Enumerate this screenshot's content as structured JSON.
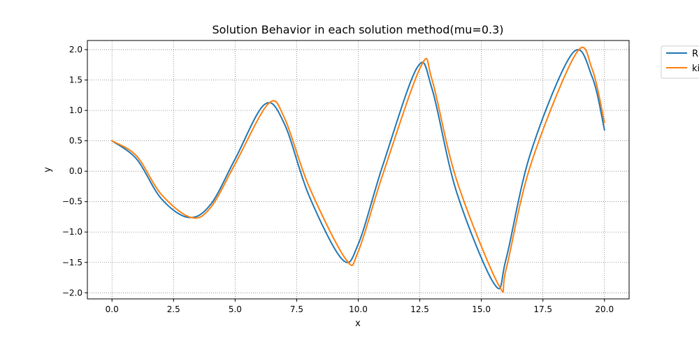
{
  "chart_data": {
    "type": "line",
    "title": "Solution Behavior in each solution method(mu=0.3)",
    "xlabel": "x",
    "ylabel": "y",
    "xlim": [
      -1,
      21
    ],
    "ylim": [
      -2.1,
      2.15
    ],
    "xticks": [
      0.0,
      2.5,
      5.0,
      7.5,
      10.0,
      12.5,
      15.0,
      17.5,
      20.0
    ],
    "yticks": [
      -2.0,
      -1.5,
      -1.0,
      -0.5,
      0.0,
      0.5,
      1.0,
      1.5,
      2.0
    ],
    "xtick_labels": [
      "0.0",
      "2.5",
      "5.0",
      "7.5",
      "10.0",
      "12.5",
      "15.0",
      "17.5",
      "20.0"
    ],
    "ytick_labels": [
      "−2.0",
      "−1.5",
      "−1.0",
      "−0.5",
      "0.0",
      "0.5",
      "1.0",
      "1.5",
      "2.0"
    ],
    "grid": true,
    "grid_style": "dotted",
    "legend_position": "outside-upper-right",
    "series": [
      {
        "name": "R",
        "color": "#1f77b4",
        "x": [
          0,
          1,
          2,
          3.1,
          4,
          5,
          6.2,
          7,
          8,
          9.35,
          10,
          11,
          12.4,
          13,
          14,
          15.55,
          16,
          17,
          18.7,
          19.5,
          20
        ],
        "y": [
          0.5,
          0.2,
          -0.45,
          -0.76,
          -0.55,
          0.2,
          1.1,
          0.78,
          -0.4,
          -1.45,
          -1.2,
          0.1,
          1.71,
          1.35,
          -0.35,
          -1.87,
          -1.45,
          0.3,
          1.94,
          1.55,
          0.68
        ]
      },
      {
        "name": "ki",
        "color": "#ff7f0e",
        "x": [
          0,
          1,
          2,
          3.2,
          4,
          5,
          6.35,
          7,
          8,
          9.5,
          10,
          11,
          12.55,
          13,
          14,
          15.7,
          16,
          17,
          18.85,
          19.5,
          20
        ],
        "y": [
          0.5,
          0.25,
          -0.38,
          -0.76,
          -0.6,
          0.12,
          1.11,
          0.88,
          -0.25,
          -1.45,
          -1.32,
          -0.05,
          1.73,
          1.5,
          -0.15,
          -1.87,
          -1.62,
          0.1,
          1.94,
          1.68,
          0.8
        ]
      }
    ]
  }
}
